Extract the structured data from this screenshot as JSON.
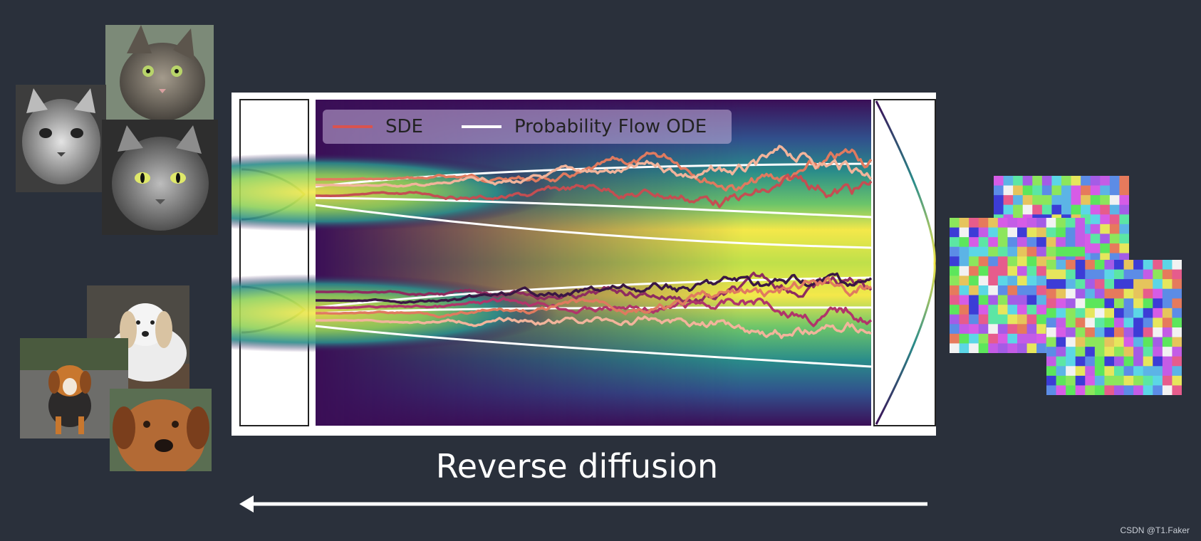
{
  "figure": {
    "legend": [
      {
        "label": "SDE",
        "color": "#d9534f"
      },
      {
        "label": "Probability Flow ODE",
        "color": "#ffffff"
      }
    ]
  },
  "caption": "Reverse diffusion",
  "watermark": "CSDN @T1.Faker",
  "colors": {
    "background": "#2a303b",
    "density_low": "#3b0f57",
    "density_mid": "#2a8c8a",
    "density_high": "#f4e84a",
    "sde_palette": [
      "#e07a5f",
      "#f2b49b",
      "#c44e52",
      "#8e2c5f",
      "#3a1744",
      "#b0356a"
    ]
  },
  "images": {
    "clean_samples": [
      "cat-photo",
      "cat-photo",
      "cat-photo",
      "dog-photo",
      "dog-photo",
      "dog-photo"
    ],
    "noise_samples": [
      "noise-grid",
      "noise-grid",
      "noise-grid"
    ]
  }
}
